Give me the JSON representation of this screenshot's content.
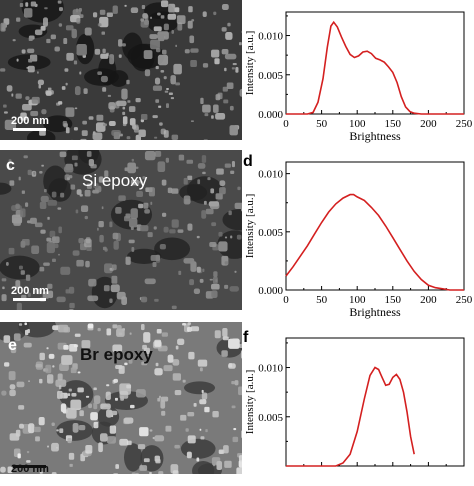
{
  "figure": {
    "rows": [
      {
        "micro": {
          "panel_letter": "",
          "label": "",
          "scalebar": "200 nm",
          "bg": "#3a3a3a",
          "particle": "#9c9c9c",
          "dark": "#151515",
          "seed": 7
        },
        "plot": {
          "panel_letter": "",
          "chart_data": {
            "type": "line",
            "xlabel": "Brightness",
            "ylabel": "Intensity [a.u.]",
            "xlim": [
              0,
              250
            ],
            "ylim": [
              0,
              0.013
            ],
            "xticks": [
              "0",
              "50",
              "100",
              "150",
              "200",
              "250"
            ],
            "yticks": [
              {
                "value": 0,
                "label": "0.000"
              },
              {
                "value": 0.005,
                "label": "0.005"
              },
              {
                "value": 0.01,
                "label": "0.010"
              }
            ],
            "color": "#d42020",
            "x": [
              0,
              30,
              38,
              45,
              52,
              58,
              63,
              67,
              72,
              78,
              84,
              90,
              96,
              102,
              108,
              114,
              120,
              126,
              132,
              138,
              144,
              150,
              156,
              162,
              168,
              174,
              180,
              190,
              200,
              250
            ],
            "y": [
              0,
              0,
              0.0002,
              0.0015,
              0.0045,
              0.0085,
              0.0112,
              0.0117,
              0.0111,
              0.0098,
              0.0086,
              0.0076,
              0.0072,
              0.0074,
              0.0079,
              0.008,
              0.0077,
              0.0071,
              0.0069,
              0.0066,
              0.006,
              0.0053,
              0.004,
              0.0022,
              0.0009,
              0.0003,
              0.0001,
              0,
              0,
              0
            ]
          }
        }
      },
      {
        "micro": {
          "panel_letter": "c",
          "label": "Si epoxy",
          "scalebar": "200 nm",
          "bg": "#4a4a4a",
          "particle": "#8a8a8a",
          "dark": "#222222",
          "seed": 19
        },
        "plot": {
          "panel_letter": "d",
          "chart_data": {
            "type": "line",
            "xlabel": "Brightness",
            "ylabel": "Intensity [a.u.]",
            "xlim": [
              0,
              250
            ],
            "ylim": [
              0,
              0.011
            ],
            "xticks": [
              "0",
              "50",
              "100",
              "150",
              "200",
              "250"
            ],
            "yticks": [
              {
                "value": 0,
                "label": "0.000"
              },
              {
                "value": 0.005,
                "label": "0.005"
              },
              {
                "value": 0.01,
                "label": "0.010"
              }
            ],
            "color": "#d42020",
            "x": [
              0,
              10,
              20,
              30,
              40,
              50,
              60,
              70,
              80,
              90,
              95,
              100,
              110,
              120,
              130,
              140,
              150,
              160,
              170,
              180,
              190,
              200,
              210,
              220,
              230,
              240,
              250
            ],
            "y": [
              0.0012,
              0.002,
              0.0029,
              0.0038,
              0.0048,
              0.0058,
              0.0067,
              0.0074,
              0.0079,
              0.0082,
              0.0082,
              0.008,
              0.0077,
              0.0071,
              0.0064,
              0.0055,
              0.0045,
              0.0035,
              0.0025,
              0.0016,
              0.0009,
              0.0004,
              0.0002,
              0.0001,
              0,
              0,
              0
            ]
          }
        }
      },
      {
        "micro": {
          "panel_letter": "e",
          "label": "Br epoxy",
          "scalebar": "200 nm",
          "bg": "#7a7a7a",
          "particle": "#c8c8c8",
          "dark": "#3a3a3a",
          "seed": 31
        },
        "plot": {
          "panel_letter": "f",
          "chart_data": {
            "type": "line",
            "xlabel": "",
            "ylabel": "Intensity [a.u.]",
            "xlim": [
              0,
              250
            ],
            "ylim": [
              0,
              0.013
            ],
            "xticks": [],
            "yticks": [
              {
                "value": 0,
                "label": ""
              },
              {
                "value": 0.005,
                "label": "0.005"
              },
              {
                "value": 0.01,
                "label": "0.010"
              }
            ],
            "color": "#d42020",
            "x": [
              0,
              70,
              80,
              90,
              100,
              110,
              118,
              125,
              130,
              135,
              140,
              145,
              150,
              155,
              160,
              165,
              170,
              175,
              180
            ],
            "y": [
              0,
              0,
              0.0003,
              0.0012,
              0.0035,
              0.0068,
              0.0092,
              0.01,
              0.0098,
              0.009,
              0.0082,
              0.0083,
              0.009,
              0.0093,
              0.0088,
              0.0075,
              0.0055,
              0.003,
              0.0012
            ]
          }
        }
      }
    ]
  }
}
